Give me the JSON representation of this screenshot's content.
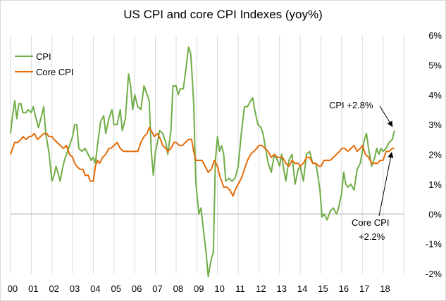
{
  "chart_data": {
    "type": "line",
    "title": "US CPI and core CPI Indexes (yoy%)",
    "xlabel": "",
    "ylabel": "",
    "x_tick_labels": [
      "00",
      "01",
      "02",
      "03",
      "04",
      "05",
      "06",
      "07",
      "08",
      "09",
      "10",
      "11",
      "12",
      "13",
      "14",
      "15",
      "16",
      "17",
      "18"
    ],
    "y_tick_labels": [
      "-2%",
      "-1%",
      "0%",
      "1%",
      "2%",
      "3%",
      "4%",
      "5%",
      "6%"
    ],
    "ylim": [
      -2,
      6
    ],
    "xlim": [
      2000.0,
      2019.0
    ],
    "y_axis_side": "right",
    "grid": "vertical",
    "legend_position": "top-left",
    "series": [
      {
        "name": "CPI",
        "color": "#70ad47",
        "points": [
          [
            2000.0,
            2.7
          ],
          [
            2000.08,
            3.2
          ],
          [
            2000.2,
            3.8
          ],
          [
            2000.3,
            3.2
          ],
          [
            2000.4,
            3.7
          ],
          [
            2000.5,
            3.7
          ],
          [
            2000.6,
            3.4
          ],
          [
            2000.75,
            3.4
          ],
          [
            2000.85,
            3.5
          ],
          [
            2001.0,
            3.4
          ],
          [
            2001.1,
            3.6
          ],
          [
            2001.2,
            3.3
          ],
          [
            2001.35,
            2.9
          ],
          [
            2001.5,
            3.3
          ],
          [
            2001.6,
            3.6
          ],
          [
            2001.7,
            2.7
          ],
          [
            2001.85,
            2.1
          ],
          [
            2002.0,
            1.1
          ],
          [
            2002.1,
            1.3
          ],
          [
            2002.2,
            1.6
          ],
          [
            2002.4,
            1.1
          ],
          [
            2002.5,
            1.5
          ],
          [
            2002.6,
            1.8
          ],
          [
            2002.75,
            2.1
          ],
          [
            2002.9,
            2.4
          ],
          [
            2003.0,
            2.6
          ],
          [
            2003.1,
            3.0
          ],
          [
            2003.2,
            3.0
          ],
          [
            2003.3,
            2.2
          ],
          [
            2003.45,
            2.1
          ],
          [
            2003.6,
            2.2
          ],
          [
            2003.75,
            2.0
          ],
          [
            2003.9,
            1.8
          ],
          [
            2004.0,
            1.9
          ],
          [
            2004.1,
            1.7
          ],
          [
            2004.2,
            2.3
          ],
          [
            2004.35,
            3.1
          ],
          [
            2004.5,
            3.3
          ],
          [
            2004.6,
            2.7
          ],
          [
            2004.75,
            3.2
          ],
          [
            2004.9,
            3.5
          ],
          [
            2005.0,
            3.0
          ],
          [
            2005.15,
            3.0
          ],
          [
            2005.3,
            3.5
          ],
          [
            2005.4,
            2.8
          ],
          [
            2005.55,
            3.2
          ],
          [
            2005.7,
            4.7
          ],
          [
            2005.8,
            4.3
          ],
          [
            2005.9,
            3.5
          ],
          [
            2006.0,
            4.0
          ],
          [
            2006.15,
            3.6
          ],
          [
            2006.3,
            3.5
          ],
          [
            2006.45,
            4.3
          ],
          [
            2006.55,
            4.1
          ],
          [
            2006.7,
            3.8
          ],
          [
            2006.8,
            2.1
          ],
          [
            2006.9,
            1.3
          ],
          [
            2007.0,
            2.1
          ],
          [
            2007.1,
            2.4
          ],
          [
            2007.2,
            2.8
          ],
          [
            2007.35,
            2.7
          ],
          [
            2007.5,
            2.4
          ],
          [
            2007.6,
            2.0
          ],
          [
            2007.75,
            2.8
          ],
          [
            2007.85,
            4.3
          ],
          [
            2008.0,
            4.3
          ],
          [
            2008.1,
            4.0
          ],
          [
            2008.2,
            4.2
          ],
          [
            2008.35,
            4.2
          ],
          [
            2008.5,
            5.0
          ],
          [
            2008.6,
            5.6
          ],
          [
            2008.7,
            5.4
          ],
          [
            2008.75,
            4.9
          ],
          [
            2008.85,
            3.7
          ],
          [
            2008.95,
            1.1
          ],
          [
            2009.1,
            0.0
          ],
          [
            2009.2,
            0.2
          ],
          [
            2009.3,
            -0.4
          ],
          [
            2009.45,
            -1.3
          ],
          [
            2009.55,
            -2.1
          ],
          [
            2009.7,
            -1.5
          ],
          [
            2009.8,
            -1.3
          ],
          [
            2009.9,
            1.8
          ],
          [
            2010.0,
            2.6
          ],
          [
            2010.1,
            2.1
          ],
          [
            2010.2,
            2.3
          ],
          [
            2010.3,
            2.0
          ],
          [
            2010.4,
            1.1
          ],
          [
            2010.55,
            1.2
          ],
          [
            2010.7,
            1.1
          ],
          [
            2010.85,
            1.2
          ],
          [
            2011.0,
            1.6
          ],
          [
            2011.15,
            2.7
          ],
          [
            2011.3,
            3.6
          ],
          [
            2011.45,
            3.6
          ],
          [
            2011.6,
            3.8
          ],
          [
            2011.7,
            3.9
          ],
          [
            2011.8,
            3.5
          ],
          [
            2011.95,
            3.0
          ],
          [
            2012.1,
            2.9
          ],
          [
            2012.2,
            2.7
          ],
          [
            2012.3,
            2.3
          ],
          [
            2012.45,
            1.7
          ],
          [
            2012.6,
            1.4
          ],
          [
            2012.75,
            2.0
          ],
          [
            2012.9,
            1.8
          ],
          [
            2013.0,
            1.6
          ],
          [
            2013.1,
            2.0
          ],
          [
            2013.2,
            1.5
          ],
          [
            2013.3,
            1.1
          ],
          [
            2013.45,
            1.8
          ],
          [
            2013.6,
            2.0
          ],
          [
            2013.75,
            1.0
          ],
          [
            2013.9,
            1.5
          ],
          [
            2014.0,
            1.6
          ],
          [
            2014.15,
            1.1
          ],
          [
            2014.3,
            2.0
          ],
          [
            2014.45,
            2.1
          ],
          [
            2014.6,
            1.7
          ],
          [
            2014.75,
            1.7
          ],
          [
            2014.85,
            1.3
          ],
          [
            2014.95,
            0.8
          ],
          [
            2015.05,
            -0.1
          ],
          [
            2015.15,
            0.0
          ],
          [
            2015.3,
            -0.2
          ],
          [
            2015.45,
            0.1
          ],
          [
            2015.6,
            0.2
          ],
          [
            2015.75,
            0.0
          ],
          [
            2015.85,
            0.2
          ],
          [
            2016.0,
            0.7
          ],
          [
            2016.1,
            1.4
          ],
          [
            2016.2,
            1.0
          ],
          [
            2016.3,
            0.9
          ],
          [
            2016.45,
            1.0
          ],
          [
            2016.6,
            0.8
          ],
          [
            2016.75,
            1.5
          ],
          [
            2016.9,
            1.7
          ],
          [
            2017.0,
            2.1
          ],
          [
            2017.1,
            2.5
          ],
          [
            2017.2,
            2.7
          ],
          [
            2017.3,
            2.2
          ],
          [
            2017.45,
            1.6
          ],
          [
            2017.6,
            1.9
          ],
          [
            2017.7,
            2.2
          ],
          [
            2017.8,
            2.0
          ],
          [
            2017.9,
            2.2
          ],
          [
            2018.0,
            2.1
          ],
          [
            2018.15,
            2.2
          ],
          [
            2018.3,
            2.4
          ],
          [
            2018.45,
            2.5
          ],
          [
            2018.55,
            2.8
          ]
        ]
      },
      {
        "name": "Core CPI",
        "color": "#e46c0a",
        "points": [
          [
            2000.0,
            2.0
          ],
          [
            2000.1,
            2.2
          ],
          [
            2000.2,
            2.4
          ],
          [
            2000.35,
            2.4
          ],
          [
            2000.5,
            2.5
          ],
          [
            2000.6,
            2.6
          ],
          [
            2000.75,
            2.5
          ],
          [
            2000.9,
            2.6
          ],
          [
            2001.0,
            2.6
          ],
          [
            2001.15,
            2.7
          ],
          [
            2001.3,
            2.5
          ],
          [
            2001.45,
            2.6
          ],
          [
            2001.6,
            2.7
          ],
          [
            2001.75,
            2.7
          ],
          [
            2001.85,
            2.6
          ],
          [
            2002.0,
            2.6
          ],
          [
            2002.1,
            2.5
          ],
          [
            2002.25,
            2.4
          ],
          [
            2002.4,
            2.3
          ],
          [
            2002.55,
            2.2
          ],
          [
            2002.7,
            2.3
          ],
          [
            2002.85,
            2.0
          ],
          [
            2003.0,
            1.9
          ],
          [
            2003.1,
            1.7
          ],
          [
            2003.2,
            1.6
          ],
          [
            2003.35,
            1.5
          ],
          [
            2003.5,
            1.5
          ],
          [
            2003.6,
            1.3
          ],
          [
            2003.75,
            1.3
          ],
          [
            2003.85,
            1.1
          ],
          [
            2004.0,
            1.1
          ],
          [
            2004.1,
            1.6
          ],
          [
            2004.2,
            1.8
          ],
          [
            2004.3,
            1.7
          ],
          [
            2004.45,
            1.9
          ],
          [
            2004.6,
            2.0
          ],
          [
            2004.75,
            2.2
          ],
          [
            2004.85,
            2.2
          ],
          [
            2005.0,
            2.3
          ],
          [
            2005.15,
            2.4
          ],
          [
            2005.3,
            2.2
          ],
          [
            2005.45,
            2.1
          ],
          [
            2005.6,
            2.1
          ],
          [
            2005.75,
            2.1
          ],
          [
            2005.9,
            2.1
          ],
          [
            2006.0,
            2.1
          ],
          [
            2006.15,
            2.1
          ],
          [
            2006.3,
            2.4
          ],
          [
            2006.45,
            2.6
          ],
          [
            2006.6,
            2.7
          ],
          [
            2006.7,
            2.9
          ],
          [
            2006.8,
            2.8
          ],
          [
            2006.95,
            2.6
          ],
          [
            2007.1,
            2.7
          ],
          [
            2007.25,
            2.5
          ],
          [
            2007.35,
            2.3
          ],
          [
            2007.5,
            2.2
          ],
          [
            2007.6,
            2.1
          ],
          [
            2007.75,
            2.2
          ],
          [
            2007.9,
            2.4
          ],
          [
            2008.0,
            2.4
          ],
          [
            2008.15,
            2.3
          ],
          [
            2008.3,
            2.3
          ],
          [
            2008.45,
            2.4
          ],
          [
            2008.6,
            2.5
          ],
          [
            2008.75,
            2.5
          ],
          [
            2008.85,
            2.1
          ],
          [
            2008.95,
            1.8
          ],
          [
            2009.1,
            1.8
          ],
          [
            2009.25,
            1.8
          ],
          [
            2009.4,
            1.6
          ],
          [
            2009.55,
            1.4
          ],
          [
            2009.7,
            1.5
          ],
          [
            2009.85,
            1.8
          ],
          [
            2010.0,
            1.6
          ],
          [
            2010.1,
            1.3
          ],
          [
            2010.2,
            1.1
          ],
          [
            2010.3,
            0.9
          ],
          [
            2010.45,
            0.9
          ],
          [
            2010.6,
            0.8
          ],
          [
            2010.75,
            0.6
          ],
          [
            2010.85,
            0.8
          ],
          [
            2011.0,
            1.0
          ],
          [
            2011.15,
            1.2
          ],
          [
            2011.3,
            1.5
          ],
          [
            2011.45,
            1.8
          ],
          [
            2011.6,
            2.0
          ],
          [
            2011.75,
            2.1
          ],
          [
            2011.9,
            2.2
          ],
          [
            2012.0,
            2.3
          ],
          [
            2012.15,
            2.3
          ],
          [
            2012.3,
            2.2
          ],
          [
            2012.45,
            2.1
          ],
          [
            2012.6,
            1.9
          ],
          [
            2012.75,
            2.0
          ],
          [
            2012.9,
            1.9
          ],
          [
            2013.0,
            1.9
          ],
          [
            2013.15,
            1.9
          ],
          [
            2013.3,
            1.7
          ],
          [
            2013.45,
            1.6
          ],
          [
            2013.6,
            1.8
          ],
          [
            2013.75,
            1.7
          ],
          [
            2013.9,
            1.7
          ],
          [
            2014.0,
            1.6
          ],
          [
            2014.15,
            1.7
          ],
          [
            2014.3,
            1.9
          ],
          [
            2014.45,
            1.9
          ],
          [
            2014.6,
            1.7
          ],
          [
            2014.75,
            1.7
          ],
          [
            2014.9,
            1.6
          ],
          [
            2015.0,
            1.6
          ],
          [
            2015.15,
            1.8
          ],
          [
            2015.3,
            1.8
          ],
          [
            2015.45,
            1.8
          ],
          [
            2015.6,
            1.9
          ],
          [
            2015.75,
            2.0
          ],
          [
            2015.9,
            2.1
          ],
          [
            2016.0,
            2.2
          ],
          [
            2016.15,
            2.2
          ],
          [
            2016.3,
            2.1
          ],
          [
            2016.45,
            2.2
          ],
          [
            2016.6,
            2.3
          ],
          [
            2016.75,
            2.1
          ],
          [
            2016.9,
            2.2
          ],
          [
            2017.0,
            2.3
          ],
          [
            2017.15,
            2.0
          ],
          [
            2017.3,
            1.9
          ],
          [
            2017.45,
            1.7
          ],
          [
            2017.6,
            1.7
          ],
          [
            2017.75,
            1.7
          ],
          [
            2017.85,
            1.8
          ],
          [
            2018.0,
            1.8
          ],
          [
            2018.15,
            2.1
          ],
          [
            2018.3,
            2.1
          ],
          [
            2018.45,
            2.2
          ],
          [
            2018.55,
            2.2
          ]
        ]
      }
    ],
    "annotations": [
      {
        "lines": [
          "CPI +2.8%"
        ],
        "series": "CPI"
      },
      {
        "lines": [
          "Core CPI",
          "+2.2%"
        ],
        "series": "Core CPI"
      }
    ]
  }
}
